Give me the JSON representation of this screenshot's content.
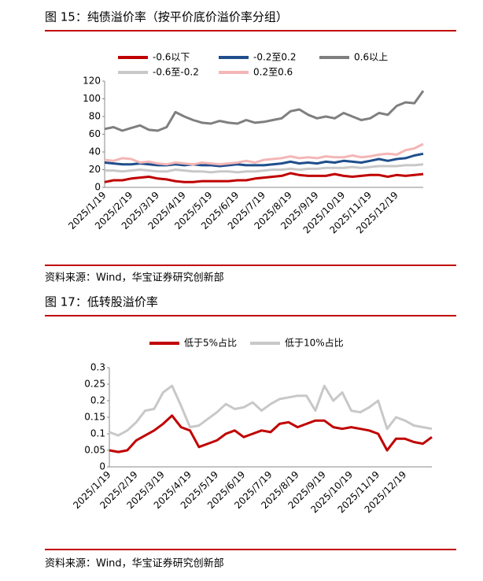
{
  "chart_data": [
    {
      "type": "line",
      "title": "图 15：纯债溢价率（按平价底价溢价率分组）",
      "source": "资料来源：Wind，华宝证券研究创新部",
      "categories": [
        "2025/1/19",
        null,
        null,
        "2025/2/19",
        null,
        null,
        "2025/3/19",
        null,
        null,
        "2025/4/19",
        null,
        null,
        "2025/5/19",
        null,
        null,
        "2025/6/19",
        null,
        null,
        "2025/7/19",
        null,
        null,
        "2025/8/19",
        null,
        null,
        "2025/9/19",
        null,
        null,
        "2025/10/19",
        null,
        null,
        "2025/11/19",
        null,
        null,
        "2025/12/19",
        null,
        null,
        null
      ],
      "series": [
        {
          "name": "-0.6以下",
          "color": "#c00000",
          "values": [
            6,
            8,
            8,
            10,
            11,
            12,
            10,
            9,
            7,
            6,
            6,
            7,
            7,
            7,
            7,
            8,
            8,
            10,
            11,
            12,
            13,
            16,
            14,
            13,
            13,
            13,
            15,
            13,
            12,
            13,
            14,
            14,
            12,
            14,
            13,
            14,
            15
          ]
        },
        {
          "name": "-0.2至0.2",
          "color": "#1f4e8c",
          "values": [
            28,
            27,
            26,
            26,
            27,
            26,
            25,
            25,
            26,
            25,
            26,
            25,
            25,
            24,
            25,
            26,
            25,
            25,
            25,
            26,
            27,
            29,
            27,
            28,
            27,
            29,
            28,
            30,
            29,
            28,
            30,
            32,
            30,
            32,
            33,
            36,
            38
          ]
        },
        {
          "name": "0.6以上",
          "color": "#7f7f7f",
          "values": [
            66,
            68,
            64,
            67,
            70,
            65,
            64,
            68,
            85,
            80,
            76,
            73,
            72,
            75,
            73,
            72,
            76,
            73,
            74,
            76,
            78,
            86,
            88,
            82,
            78,
            80,
            78,
            84,
            80,
            76,
            78,
            84,
            82,
            92,
            96,
            95,
            109
          ]
        },
        {
          "name": "-0.6至-0.2",
          "color": "#c8c8c8",
          "values": [
            19,
            19,
            18,
            19,
            20,
            19,
            18,
            18,
            20,
            19,
            18,
            18,
            17,
            18,
            18,
            17,
            18,
            18,
            19,
            20,
            20,
            21,
            20,
            21,
            21,
            22,
            22,
            22,
            23,
            22,
            23,
            24,
            24,
            24,
            25,
            25,
            26
          ]
        },
        {
          "name": "0.2至0.6",
          "color": "#f4b6b6",
          "values": [
            31,
            30,
            33,
            32,
            28,
            29,
            27,
            26,
            28,
            27,
            26,
            28,
            27,
            26,
            27,
            28,
            30,
            28,
            31,
            32,
            33,
            35,
            33,
            34,
            33,
            35,
            34,
            34,
            36,
            34,
            35,
            37,
            38,
            37,
            42,
            44,
            49
          ]
        }
      ],
      "ylim": [
        0,
        120
      ],
      "yticks": [
        0,
        20,
        40,
        60,
        80,
        100,
        120
      ]
    },
    {
      "type": "line",
      "title": "图 17：低转股溢价率",
      "source": "资料来源：Wind，华宝证券研究创新部",
      "categories": [
        "2025/1/19",
        null,
        null,
        "2025/2/19",
        null,
        null,
        "2025/3/19",
        null,
        null,
        "2025/4/19",
        null,
        null,
        "2025/5/19",
        null,
        null,
        "2025/6/19",
        null,
        null,
        "2025/7/19",
        null,
        null,
        "2025/8/19",
        null,
        null,
        "2025/9/19",
        null,
        null,
        "2025/10/19",
        null,
        null,
        "2025/11/19",
        null,
        null,
        "2025/12/19",
        null,
        null,
        null
      ],
      "series": [
        {
          "name": "低于5%占比",
          "color": "#c00000",
          "values": [
            0.05,
            0.045,
            0.05,
            0.08,
            0.095,
            0.11,
            0.13,
            0.155,
            0.12,
            0.11,
            0.06,
            0.07,
            0.08,
            0.1,
            0.11,
            0.09,
            0.1,
            0.11,
            0.105,
            0.13,
            0.135,
            0.12,
            0.13,
            0.14,
            0.14,
            0.12,
            0.115,
            0.12,
            0.115,
            0.11,
            0.1,
            0.05,
            0.085,
            0.085,
            0.075,
            0.07,
            0.09
          ]
        },
        {
          "name": "低于10%占比",
          "color": "#c8c8c8",
          "values": [
            0.105,
            0.095,
            0.11,
            0.135,
            0.17,
            0.175,
            0.225,
            0.245,
            0.185,
            0.12,
            0.125,
            0.145,
            0.165,
            0.19,
            0.175,
            0.18,
            0.195,
            0.17,
            0.19,
            0.205,
            0.21,
            0.215,
            0.215,
            0.17,
            0.245,
            0.2,
            0.225,
            0.17,
            0.165,
            0.18,
            0.2,
            0.115,
            0.15,
            0.14,
            0.125,
            0.12,
            0.115
          ]
        }
      ],
      "ylim": [
        0,
        0.3
      ],
      "yticks": [
        0,
        0.05,
        0.1,
        0.15,
        0.2,
        0.25,
        0.3
      ]
    }
  ]
}
